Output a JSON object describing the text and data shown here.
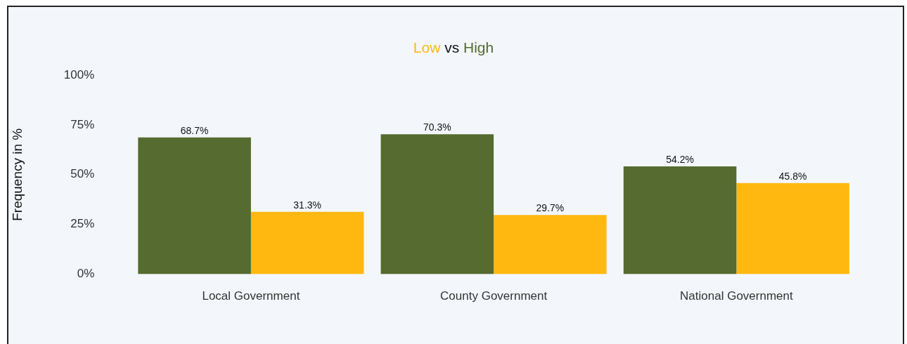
{
  "chart_data": {
    "type": "bar",
    "annotations": [
      "vs"
    ],
    "ylabel": "Frequency in %",
    "categories": [
      "Local Government",
      "County Government",
      "National Government"
    ],
    "series": [
      {
        "name": "High",
        "color": "#556b2f",
        "values": [
          68.7,
          70.3,
          54.2
        ],
        "value_labels": [
          "68.7%",
          "70.3%",
          "54.2%"
        ]
      },
      {
        "name": "Low",
        "color": "#ffb810",
        "values": [
          31.3,
          29.7,
          45.8
        ],
        "value_labels": [
          "31.3%",
          "29.7%",
          "45.8%"
        ]
      }
    ],
    "ylim": [
      0,
      100
    ],
    "yticks": [
      {
        "value": 0,
        "label": "0%"
      },
      {
        "value": 25,
        "label": "25%"
      },
      {
        "value": 50,
        "label": "50%"
      },
      {
        "value": 75,
        "label": "75%"
      },
      {
        "value": 100,
        "label": "100%"
      }
    ],
    "grid": false,
    "legend": false
  }
}
